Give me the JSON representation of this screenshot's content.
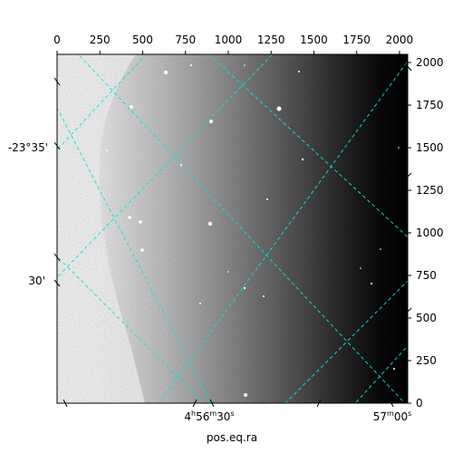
{
  "figure": {
    "x_label": "pos.eq.ra",
    "pixel_axis_top": [
      "0",
      "250",
      "500",
      "750",
      "1000",
      "1250",
      "1500",
      "1750",
      "2000"
    ],
    "pixel_axis_right": [
      "0",
      "250",
      "500",
      "750",
      "1000",
      "1250",
      "1500",
      "1750",
      "2000"
    ],
    "dec_labels": [
      "-23°35'",
      "30'"
    ],
    "ra_labels": [
      {
        "h": "4",
        "h_unit": "h",
        "m": "56",
        "m_unit": "m",
        "s": "30",
        "s_unit": "s"
      },
      {
        "m": "57",
        "m_unit": "m",
        "s": "00",
        "s_unit": "s"
      }
    ],
    "colors": {
      "grid": "#00e5e5",
      "background": "#ffffff",
      "frame": "#000000"
    },
    "image": {
      "colormap": "gray",
      "gradient": "bright-left-to-dark-right"
    }
  }
}
